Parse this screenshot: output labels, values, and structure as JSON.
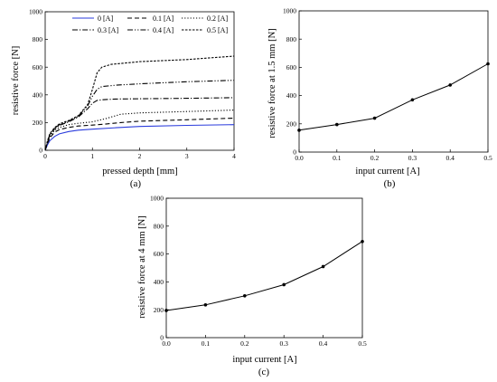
{
  "chart_data": [
    {
      "type": "line",
      "panel_label": "(a)",
      "xlabel": "pressed depth [mm]",
      "ylabel": "resistive force [N]",
      "xlim": [
        0,
        4
      ],
      "ylim": [
        0,
        1000
      ],
      "xticks": [
        "0",
        "1",
        "2",
        "3",
        "4"
      ],
      "yticks": [
        "0",
        "200",
        "400",
        "600",
        "800",
        "1000"
      ],
      "grid": false,
      "legend": "top",
      "series": [
        {
          "name": "0 [A]",
          "color": "#2a3bdc",
          "dash": "solid",
          "x": [
            0,
            0.05,
            0.1,
            0.2,
            0.3,
            0.5,
            0.7,
            1.0,
            1.5,
            2.0,
            3.0,
            4.0
          ],
          "y": [
            0,
            40,
            70,
            100,
            118,
            135,
            145,
            152,
            163,
            172,
            180,
            185
          ]
        },
        {
          "name": "0.1 [A]",
          "color": "#000000",
          "dash": "dash",
          "x": [
            0,
            0.05,
            0.1,
            0.2,
            0.3,
            0.5,
            0.7,
            1.0,
            1.3,
            1.6,
            2.0,
            3.0,
            4.0
          ],
          "y": [
            0,
            50,
            90,
            130,
            150,
            165,
            175,
            182,
            190,
            200,
            210,
            220,
            232
          ]
        },
        {
          "name": "0.2 [A]",
          "color": "#000000",
          "dash": "dot",
          "x": [
            0,
            0.05,
            0.1,
            0.2,
            0.3,
            0.5,
            0.7,
            1.0,
            1.3,
            1.6,
            2.0,
            3.0,
            4.0
          ],
          "y": [
            0,
            55,
            100,
            145,
            165,
            185,
            195,
            205,
            230,
            260,
            270,
            280,
            290
          ]
        },
        {
          "name": "0.3 [A]",
          "color": "#000000",
          "dash": "dashdot",
          "x": [
            0,
            0.05,
            0.1,
            0.2,
            0.3,
            0.5,
            0.7,
            0.9,
            1.0,
            1.1,
            1.2,
            1.5,
            2.0,
            3.0,
            4.0
          ],
          "y": [
            0,
            60,
            110,
            155,
            180,
            205,
            240,
            300,
            340,
            360,
            365,
            370,
            372,
            375,
            380
          ]
        },
        {
          "name": "0.4 [A]",
          "color": "#000000",
          "dash": "dashdotdot",
          "x": [
            0,
            0.05,
            0.1,
            0.2,
            0.3,
            0.5,
            0.7,
            0.9,
            1.0,
            1.1,
            1.2,
            1.5,
            2.0,
            3.0,
            4.0
          ],
          "y": [
            0,
            65,
            115,
            160,
            185,
            210,
            245,
            320,
            390,
            440,
            460,
            470,
            480,
            495,
            505
          ]
        },
        {
          "name": "0.5 [A]",
          "color": "#000000",
          "dash": "shortdash",
          "x": [
            0,
            0.05,
            0.1,
            0.2,
            0.3,
            0.5,
            0.7,
            0.9,
            1.0,
            1.1,
            1.2,
            1.4,
            1.7,
            2.0,
            3.0,
            4.0
          ],
          "y": [
            0,
            70,
            120,
            165,
            190,
            215,
            250,
            330,
            440,
            560,
            600,
            620,
            630,
            640,
            655,
            680
          ]
        }
      ]
    },
    {
      "type": "line",
      "panel_label": "(b)",
      "xlabel": "input current [A]",
      "ylabel": "resistive force at 1.5 mm [N]",
      "xlim": [
        0,
        0.5
      ],
      "ylim": [
        0,
        1000
      ],
      "xticks": [
        "0.0",
        "0.1",
        "0.2",
        "0.3",
        "0.4",
        "0.5"
      ],
      "yticks": [
        "0",
        "200",
        "400",
        "600",
        "800",
        "1000"
      ],
      "grid": false,
      "markers": true,
      "x": [
        0.0,
        0.1,
        0.2,
        0.3,
        0.4,
        0.5
      ],
      "y": [
        155,
        195,
        240,
        370,
        475,
        625
      ]
    },
    {
      "type": "line",
      "panel_label": "(c)",
      "xlabel": "input current [A]",
      "ylabel": "resistive force at 4 mm [N]",
      "xlim": [
        0,
        0.5
      ],
      "ylim": [
        0,
        1000
      ],
      "xticks": [
        "0.0",
        "0.1",
        "0.2",
        "0.3",
        "0.4",
        "0.5"
      ],
      "yticks": [
        "0",
        "200",
        "400",
        "600",
        "800",
        "1000"
      ],
      "grid": false,
      "markers": true,
      "x": [
        0.0,
        0.1,
        0.2,
        0.3,
        0.4,
        0.5
      ],
      "y": [
        195,
        235,
        300,
        380,
        510,
        690
      ]
    }
  ]
}
